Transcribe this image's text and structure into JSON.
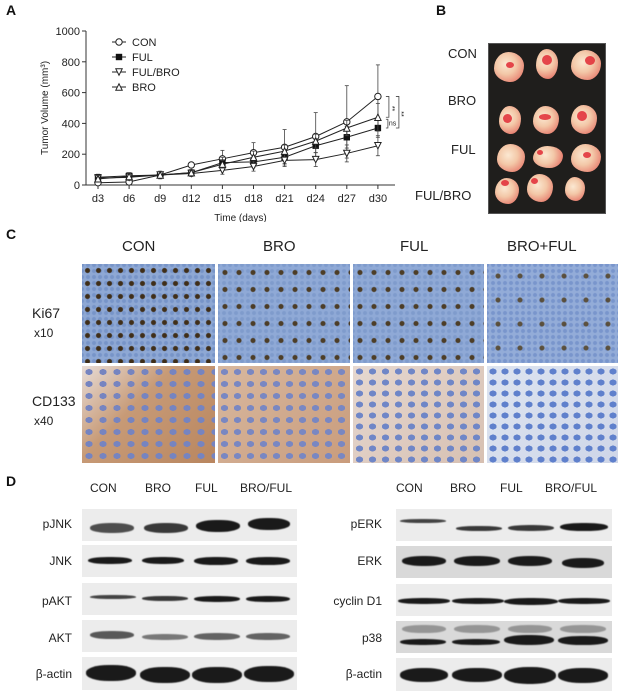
{
  "panels": {
    "A": {
      "letter": "A"
    },
    "B": {
      "letter": "B",
      "row_labels": [
        "CON",
        "BRO",
        "FUL",
        "FUL/BRO"
      ]
    },
    "C": {
      "letter": "C",
      "columns": [
        "CON",
        "BRO",
        "FUL",
        "BRO+FUL"
      ],
      "rows": [
        {
          "label": "Ki67",
          "magnification": "x10"
        },
        {
          "label": "CD133",
          "magnification": "x40"
        }
      ]
    },
    "D": {
      "letter": "D",
      "left": {
        "columns": [
          "CON",
          "BRO",
          "FUL",
          "BRO/FUL"
        ],
        "rows": [
          "pJNK",
          "JNK",
          "pAKT",
          "AKT",
          "β-actin"
        ]
      },
      "right": {
        "columns": [
          "CON",
          "BRO",
          "FUL",
          "BRO/FUL"
        ],
        "rows": [
          "pERK",
          "ERK",
          "cyclin D1",
          "p38",
          "β-actin"
        ]
      }
    }
  },
  "chart_data": {
    "type": "line",
    "title": "",
    "xlabel": "Time (days)",
    "ylabel": "Tumor Volume (mm³)",
    "ylim": [
      0,
      1000
    ],
    "yticks": [
      0,
      200,
      400,
      600,
      800,
      1000
    ],
    "categories": [
      "d3",
      "d6",
      "d9",
      "d12",
      "d15",
      "d18",
      "d21",
      "d24",
      "d27",
      "d30"
    ],
    "legend_position": "upper-left",
    "grid": false,
    "series": [
      {
        "name": "CON",
        "marker": "open-circle",
        "values": [
          15,
          20,
          65,
          130,
          170,
          210,
          245,
          315,
          410,
          575
        ],
        "err_upper": [
          60,
          70,
          90,
          145,
          225,
          275,
          360,
          470,
          645,
          780
        ]
      },
      {
        "name": "FUL",
        "marker": "filled-square",
        "values": [
          50,
          60,
          65,
          80,
          145,
          150,
          180,
          255,
          310,
          370
        ],
        "err_upper": [
          70,
          80,
          85,
          100,
          180,
          185,
          220,
          300,
          380,
          430
        ]
      },
      {
        "name": "FUL/BRO",
        "marker": "open-down-triangle",
        "values": [
          45,
          50,
          65,
          75,
          95,
          120,
          160,
          165,
          205,
          255
        ],
        "err_upper": [
          65,
          70,
          85,
          95,
          120,
          150,
          200,
          210,
          260,
          320
        ]
      },
      {
        "name": "BRO",
        "marker": "open-up-triangle",
        "values": [
          40,
          55,
          65,
          80,
          135,
          180,
          220,
          285,
          370,
          440
        ],
        "err_upper": [
          60,
          75,
          85,
          100,
          160,
          220,
          260,
          330,
          420,
          530
        ]
      }
    ],
    "annotations": [
      {
        "text": "**",
        "between": [
          "CON",
          "BRO"
        ],
        "at": "d30"
      },
      {
        "text": "ns",
        "between": [
          "BRO",
          "FUL"
        ],
        "at": "d30"
      },
      {
        "text": "**",
        "between": [
          "CON",
          "FUL"
        ],
        "at": "d30"
      }
    ]
  }
}
